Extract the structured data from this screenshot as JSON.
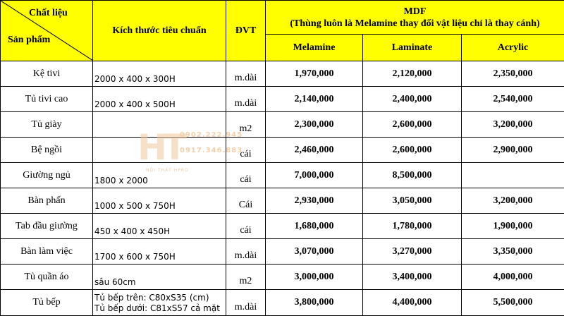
{
  "header": {
    "corner_top": "Chất liệu",
    "corner_bottom": "Sản phẩm",
    "size_col": "Kích thước tiêu chuẩn",
    "unit_col": "ĐVT",
    "mdf_title": "MDF",
    "mdf_subtitle": "(Thùng luôn là Melamine thay đổi vật liệu chỉ là thay cánh)",
    "materials": [
      "Melamine",
      "Laminate",
      "Acrylic"
    ]
  },
  "rows": [
    {
      "product": "Kệ tivi",
      "size": "2000 x 400 x 300H",
      "size2": "",
      "unit": "m.dài",
      "melamine": "1,970,000",
      "laminate": "2,120,000",
      "acrylic": "2,350,000"
    },
    {
      "product": "Tủ tivi cao",
      "size": "2000 x 400 x 500H",
      "size2": "",
      "unit": "m.dài",
      "melamine": "2,140,000",
      "laminate": "2,400,000",
      "acrylic": "2,540,000"
    },
    {
      "product": "Tủ giày",
      "size": "",
      "size2": "",
      "unit": "m2",
      "melamine": "2,300,000",
      "laminate": "2,600,000",
      "acrylic": "3,200,000"
    },
    {
      "product": "Bệ ngồi",
      "size": "",
      "size2": "",
      "unit": "cái",
      "melamine": "2,460,000",
      "laminate": "2,600,000",
      "acrylic": "2,900,000"
    },
    {
      "product": "Giường ngủ",
      "size": "1800 x 2000",
      "size2": "",
      "unit": "cái",
      "melamine": "7,000,000",
      "laminate": "8,500,000",
      "acrylic": ""
    },
    {
      "product": "Bàn phấn",
      "size": "1000 x 500 x 750H",
      "size2": "",
      "unit": "Cái",
      "melamine": "2,930,000",
      "laminate": "3,050,000",
      "acrylic": "3,200,000"
    },
    {
      "product": "Tab đầu giường",
      "size": "450 x 400 x 450H",
      "size2": "",
      "unit": "cái",
      "melamine": "1,680,000",
      "laminate": "1,780,000",
      "acrylic": "1,900,000"
    },
    {
      "product": "Bàn làm việc",
      "size": "1700 x 600 x 750H",
      "size2": "",
      "unit": "m.dài",
      "melamine": "3,070,000",
      "laminate": "3,270,000",
      "acrylic": "3,350,000"
    },
    {
      "product": "Tủ quần áo",
      "size": "sâu 60cm",
      "size2": "",
      "unit": "m2",
      "melamine": "3,000,000",
      "laminate": "3,400,000",
      "acrylic": "4,000,000"
    },
    {
      "product": "Tủ bếp",
      "size": "Tủ bếp trên: C80xS35 (cm)",
      "size2": "Tủ bếp dưới: C81xS57 cả mặt",
      "unit": "m.dài",
      "melamine": "3,800,000",
      "laminate": "4,400,000",
      "acrylic": "5,500,000"
    }
  ],
  "watermark": {
    "logo": "HT",
    "phone1": "0902.222.945",
    "phone2": "0917.346.883",
    "brand": "NỘI THẤT HPRO"
  },
  "colors": {
    "header_bg": "#ffff00",
    "grid": "#000000",
    "watermark": "#f0c79a"
  }
}
